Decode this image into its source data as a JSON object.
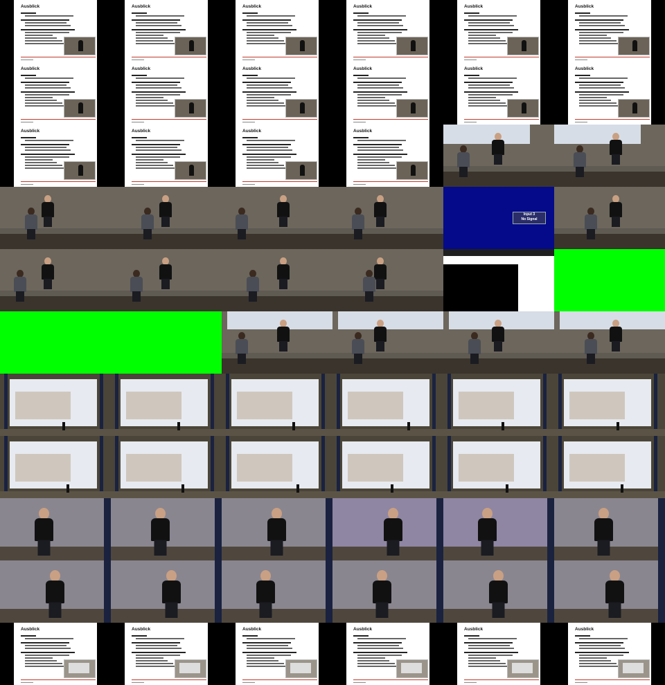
{
  "grid": {
    "columns": 6,
    "rows": 11
  },
  "slide": {
    "title": "Ausblick"
  },
  "no_signal": {
    "line1": "Input 3",
    "line2": "No Signal"
  },
  "tiles": [
    "slide",
    "slide",
    "slide",
    "slide",
    "slide",
    "slide",
    "slide",
    "slide",
    "slide",
    "slide",
    "slide",
    "slide",
    "slide",
    "slide",
    "slide",
    "slide",
    "stage-screen",
    "stage-screen",
    "stage",
    "stage",
    "stage",
    "stage",
    "no-signal",
    "stage",
    "stage",
    "stage",
    "stage",
    "stage",
    "desktop",
    "green",
    "green",
    "green",
    "stage-window",
    "stage-window",
    "stage-window",
    "stage-window",
    "hall",
    "hall",
    "hall",
    "hall",
    "hall",
    "hall",
    "hall",
    "hall",
    "hall",
    "hall",
    "hall",
    "hall",
    "closeup",
    "closeup",
    "closeup",
    "closeup-violet",
    "closeup-violet",
    "closeup",
    "closeup",
    "closeup",
    "closeup",
    "closeup",
    "closeup",
    "closeup",
    "slide-end",
    "slide-end",
    "slide-end",
    "slide-end",
    "slide-end",
    "slide-end"
  ]
}
